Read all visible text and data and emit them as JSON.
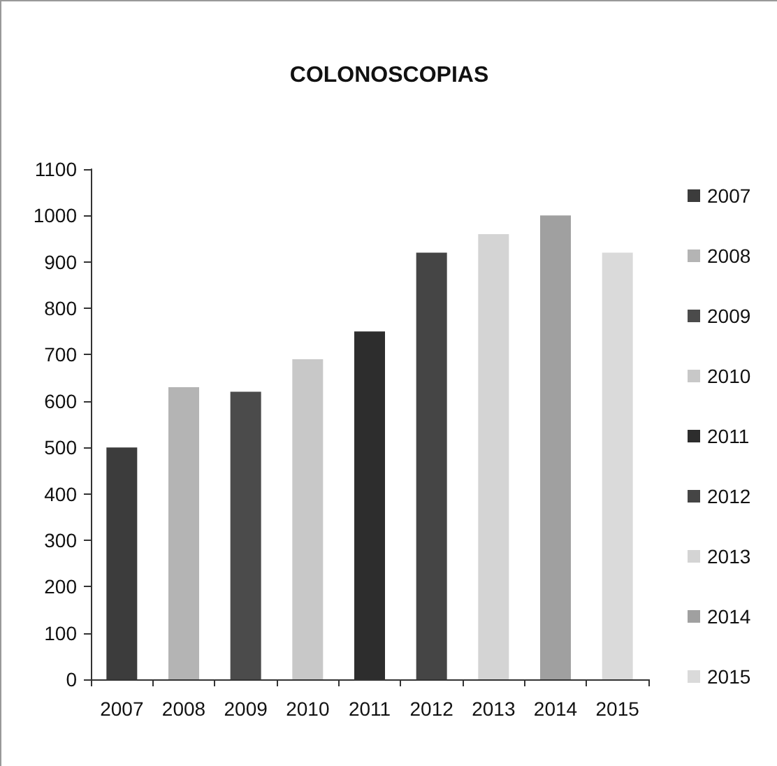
{
  "chart_data": {
    "type": "bar",
    "title": "COLONOSCOPIAS",
    "categories": [
      "2007",
      "2008",
      "2009",
      "2010",
      "2011",
      "2012",
      "2013",
      "2014",
      "2015"
    ],
    "series": [
      {
        "name": "2007",
        "color": "#3c3c3c",
        "values": [
          500,
          null,
          null,
          null,
          null,
          null,
          null,
          null,
          null
        ]
      },
      {
        "name": "2008",
        "color": "#b4b4b4",
        "values": [
          null,
          630,
          null,
          null,
          null,
          null,
          null,
          null,
          null
        ]
      },
      {
        "name": "2009",
        "color": "#4b4b4b",
        "values": [
          null,
          null,
          620,
          null,
          null,
          null,
          null,
          null,
          null
        ]
      },
      {
        "name": "2010",
        "color": "#c8c8c8",
        "values": [
          null,
          null,
          null,
          690,
          null,
          null,
          null,
          null,
          null
        ]
      },
      {
        "name": "2011",
        "color": "#2d2d2d",
        "values": [
          null,
          null,
          null,
          null,
          750,
          null,
          null,
          null,
          null
        ]
      },
      {
        "name": "2012",
        "color": "#454545",
        "values": [
          null,
          null,
          null,
          null,
          null,
          920,
          null,
          null,
          null
        ]
      },
      {
        "name": "2013",
        "color": "#d4d4d4",
        "values": [
          null,
          null,
          null,
          null,
          null,
          null,
          960,
          null,
          null
        ]
      },
      {
        "name": "2014",
        "color": "#a0a0a0",
        "values": [
          null,
          null,
          null,
          null,
          null,
          null,
          null,
          1000,
          null
        ]
      },
      {
        "name": "2015",
        "color": "#dadada",
        "values": [
          null,
          null,
          null,
          null,
          null,
          null,
          null,
          null,
          920
        ]
      }
    ],
    "stacked": true,
    "ylim": [
      0,
      1100
    ],
    "yticks": [
      0,
      100,
      200,
      300,
      400,
      500,
      600,
      700,
      800,
      900,
      1000,
      1100
    ],
    "legend": "right"
  }
}
